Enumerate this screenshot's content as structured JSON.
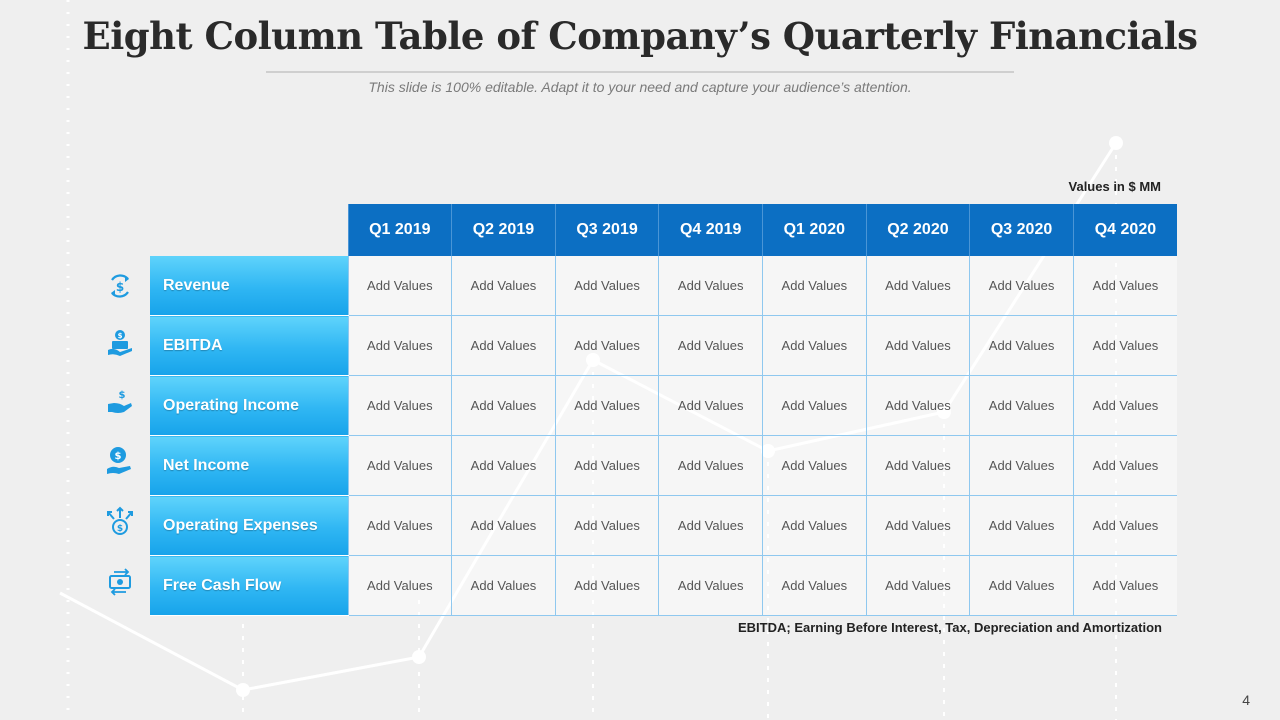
{
  "title": "Eight Column Table of Company’s Quarterly Financials",
  "subtitle": "This slide is 100% editable. Adapt it to your need and capture your audience’s attention.",
  "units_note": "Values in $ MM",
  "table": {
    "columns": [
      "Q1 2019",
      "Q2 2019",
      "Q3 2019",
      "Q4 2019",
      "Q1 2020",
      "Q2 2020",
      "Q3 2020",
      "Q4 2020"
    ],
    "rows": [
      {
        "label": "Revenue",
        "icon": "dollar-cycle-icon",
        "values": [
          "Add Values",
          "Add Values",
          "Add Values",
          "Add Values",
          "Add Values",
          "Add Values",
          "Add Values",
          "Add Values"
        ]
      },
      {
        "label": "EBITDA",
        "icon": "money-hand-icon",
        "values": [
          "Add Values",
          "Add Values",
          "Add Values",
          "Add Values",
          "Add Values",
          "Add Values",
          "Add Values",
          "Add Values"
        ]
      },
      {
        "label": "Operating Income",
        "icon": "income-hand-icon",
        "values": [
          "Add Values",
          "Add Values",
          "Add Values",
          "Add Values",
          "Add Values",
          "Add Values",
          "Add Values",
          "Add Values"
        ]
      },
      {
        "label": "Net Income",
        "icon": "coin-hand-icon",
        "values": [
          "Add Values",
          "Add Values",
          "Add Values",
          "Add Values",
          "Add Values",
          "Add Values",
          "Add Values",
          "Add Values"
        ]
      },
      {
        "label": "Operating Expenses",
        "icon": "coin-arrows-icon",
        "values": [
          "Add Values",
          "Add Values",
          "Add Values",
          "Add Values",
          "Add Values",
          "Add Values",
          "Add Values",
          "Add Values"
        ]
      },
      {
        "label": "Free Cash Flow",
        "icon": "cash-exchange-icon",
        "values": [
          "Add Values",
          "Add Values",
          "Add Values",
          "Add Values",
          "Add Values",
          "Add Values",
          "Add Values",
          "Add Values"
        ]
      }
    ]
  },
  "footnote": "EBITDA; Earning Before Interest, Tax, Depreciation and Amortization",
  "page_number": "4",
  "colors": {
    "header_blue": "#0c6fc3",
    "label_cyan": "#2fb6f3",
    "icon_blue": "#1e9be0"
  }
}
